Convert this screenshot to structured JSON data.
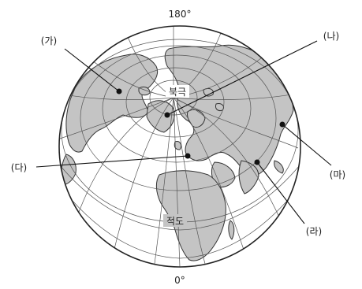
{
  "figure": {
    "meridian_top_label": "180°",
    "meridian_bottom_label": "0°",
    "north_pole_label": "북극",
    "equator_label": "적도"
  },
  "markers": [
    {
      "id": "ga",
      "label": "(가)"
    },
    {
      "id": "na",
      "label": "(나)"
    },
    {
      "id": "da",
      "label": "(다)"
    },
    {
      "id": "ra",
      "label": "(라)"
    },
    {
      "id": "ma",
      "label": "(마)"
    }
  ],
  "colors": {
    "land": "#c4c4c4",
    "ocean": "#ffffff",
    "grid": "#555555",
    "outline": "#222222"
  }
}
